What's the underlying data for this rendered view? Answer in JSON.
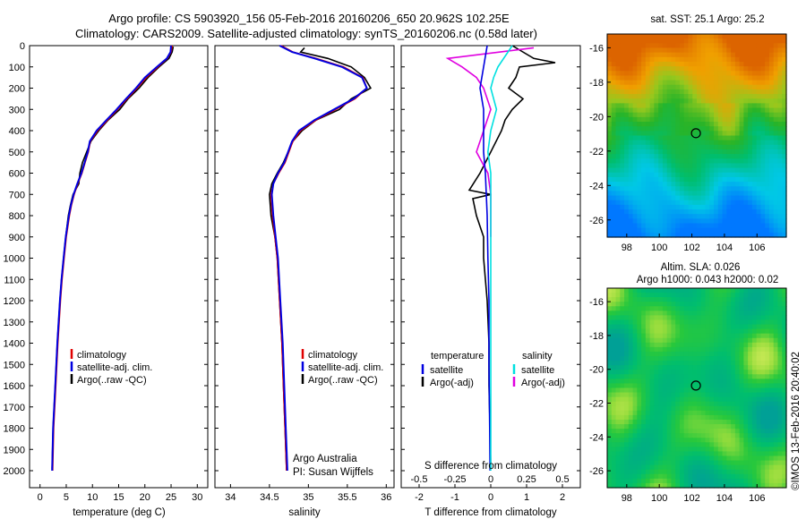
{
  "header": {
    "title_line1": "Argo profile: CS 5903920_156 05-Feb-2016 20160206_650 20.962S 102.25E",
    "title_line2": "Climatology: CARS2009. Satellite-adjusted climatology: synTS_20160206.nc (0.58d later)"
  },
  "side_label": "©IMOS 13-Feb-2016 20:40:02",
  "chart_data": [
    {
      "type": "line",
      "id": "temperature",
      "xlabel": "temperature (deg C)",
      "ylabel": "",
      "xlim": [
        -2,
        32
      ],
      "ylim": [
        2080,
        0
      ],
      "x_ticks": [
        0,
        5,
        10,
        15,
        20,
        25,
        30
      ],
      "y_ticks": [
        0,
        100,
        200,
        300,
        400,
        500,
        600,
        700,
        800,
        900,
        1000,
        1100,
        1200,
        1300,
        1400,
        1500,
        1600,
        1700,
        1800,
        1900,
        2000
      ],
      "legend": [
        "climatology",
        "satellite-adj. clim.",
        "Argo(..raw -QC)"
      ],
      "legend_placement": "lower-left",
      "colors": [
        "#e00000",
        "#0000e0",
        "#000000"
      ],
      "series": [
        {
          "name": "climatology",
          "depth": [
            0,
            30,
            60,
            100,
            150,
            200,
            250,
            300,
            350,
            400,
            450,
            500,
            550,
            600,
            650,
            700,
            750,
            800,
            900,
            1000,
            1100,
            1200,
            1400,
            1600,
            1800,
            2000
          ],
          "values": [
            25.2,
            25.0,
            24.3,
            22.5,
            20.3,
            18.5,
            16.6,
            14.8,
            12.9,
            11.0,
            9.6,
            9.2,
            8.6,
            8.0,
            7.2,
            6.5,
            6.0,
            5.6,
            5.0,
            4.6,
            4.2,
            3.9,
            3.4,
            3.0,
            2.6,
            2.4
          ]
        },
        {
          "name": "satellite-adj. clim.",
          "depth": [
            0,
            30,
            60,
            100,
            150,
            200,
            250,
            300,
            350,
            400,
            450,
            500,
            550,
            600,
            650,
            700,
            750,
            800,
            900,
            1000,
            1100,
            1200,
            1400,
            1600,
            1800,
            2000
          ],
          "values": [
            25.0,
            24.9,
            24.2,
            22.3,
            20.0,
            18.3,
            16.4,
            14.6,
            12.7,
            10.8,
            9.5,
            9.1,
            8.5,
            7.9,
            7.1,
            6.4,
            5.9,
            5.5,
            4.9,
            4.5,
            4.1,
            3.8,
            3.3,
            2.9,
            2.5,
            2.3
          ]
        },
        {
          "name": "Argo(..raw -QC)",
          "depth": [
            5,
            30,
            60,
            100,
            150,
            200,
            250,
            300,
            350,
            400,
            450,
            500,
            550,
            600,
            650,
            700,
            750,
            800,
            900,
            1000,
            1100,
            1200,
            1400,
            1600,
            1800,
            1990
          ],
          "values": [
            25.4,
            25.2,
            24.6,
            22.7,
            20.6,
            18.9,
            16.8,
            15.2,
            13.0,
            11.2,
            9.7,
            8.9,
            8.1,
            7.6,
            7.4,
            6.3,
            5.8,
            5.4,
            4.9,
            4.5,
            4.1,
            3.8,
            3.3,
            2.9,
            2.5,
            2.3
          ]
        }
      ]
    },
    {
      "type": "line",
      "id": "salinity",
      "xlabel": "salinity",
      "ylabel": "",
      "xlim": [
        33.8,
        36.1
      ],
      "ylim": [
        2080,
        0
      ],
      "x_ticks": [
        34,
        34.5,
        35,
        35.5,
        36
      ],
      "legend": [
        "climatology",
        "satellite-adj. clim.",
        "Argo(..raw -QC)"
      ],
      "legend_placement": "lower-right",
      "annotation_lines": [
        "Argo Australia",
        "PI: Susan Wijffels"
      ],
      "colors": [
        "#e00000",
        "#0000e0",
        "#000000"
      ],
      "series": [
        {
          "name": "climatology",
          "depth": [
            0,
            30,
            60,
            100,
            150,
            200,
            250,
            300,
            350,
            400,
            450,
            500,
            550,
            600,
            650,
            700,
            800,
            900,
            1000,
            1200,
            1400,
            1600,
            1800,
            2000
          ],
          "values": [
            34.65,
            34.8,
            35.1,
            35.45,
            35.7,
            35.75,
            35.6,
            35.35,
            35.1,
            34.9,
            34.8,
            34.75,
            34.7,
            34.62,
            34.55,
            34.52,
            34.54,
            34.57,
            34.6,
            34.63,
            34.66,
            34.68,
            34.7,
            34.72
          ]
        },
        {
          "name": "satellite-adj. clim.",
          "depth": [
            0,
            30,
            60,
            100,
            150,
            200,
            250,
            300,
            350,
            400,
            450,
            500,
            550,
            600,
            650,
            700,
            800,
            900,
            1000,
            1200,
            1400,
            1600,
            1800,
            2000
          ],
          "values": [
            34.63,
            34.79,
            35.08,
            35.43,
            35.69,
            35.75,
            35.58,
            35.33,
            35.08,
            34.88,
            34.79,
            34.74,
            34.69,
            34.61,
            34.55,
            34.53,
            34.55,
            34.58,
            34.61,
            34.64,
            34.67,
            34.69,
            34.71,
            34.73
          ]
        },
        {
          "name": "Argo(..raw -QC)",
          "depth": [
            10,
            30,
            60,
            100,
            150,
            200,
            250,
            300,
            350,
            400,
            450,
            500,
            550,
            600,
            650,
            700,
            800,
            900,
            1000,
            1200,
            1400,
            1600,
            1800,
            2000
          ],
          "values": [
            34.95,
            34.9,
            35.25,
            35.55,
            35.72,
            35.8,
            35.55,
            35.4,
            35.1,
            34.92,
            34.8,
            34.74,
            34.68,
            34.6,
            34.53,
            34.5,
            34.52,
            34.57,
            34.6,
            34.63,
            34.66,
            34.68,
            34.7,
            34.72
          ]
        }
      ]
    },
    {
      "type": "line",
      "id": "differences",
      "xlabel": "T difference from climatology",
      "xlabel_top": "S difference from climatology",
      "xlim": [
        -2.5,
        2.5
      ],
      "ylim": [
        2080,
        0
      ],
      "x_ticks_T": [
        -2,
        -1,
        0,
        1,
        2
      ],
      "x_ticks_S": [
        -0.5,
        -0.25,
        0,
        0.25,
        0.5
      ],
      "legend_headers": [
        "temperature",
        "salinity"
      ],
      "legend": [
        "satellite",
        "Argo(-adj)",
        "satellite",
        "Argo(-adj)"
      ],
      "legend_placement": "lower-center",
      "colors": [
        "#0000e0",
        "#000000",
        "#00e0e0",
        "#e000e0"
      ],
      "series": [
        {
          "name": "temperature satellite",
          "depth": [
            0,
            100,
            200,
            300,
            400,
            500,
            600,
            800,
            1000,
            1200,
            1500,
            1800,
            2000
          ],
          "values": [
            -0.1,
            -0.2,
            -0.3,
            -0.2,
            -0.2,
            -0.2,
            -0.15,
            -0.1,
            -0.08,
            -0.05,
            -0.05,
            -0.03,
            -0.02
          ]
        },
        {
          "name": "temperature Argo(-adj)",
          "depth": [
            0,
            60,
            80,
            100,
            150,
            200,
            250,
            300,
            350,
            400,
            500,
            600,
            680,
            700,
            720,
            800,
            900,
            1000,
            1200,
            1400,
            1600,
            1800,
            1990
          ],
          "values": [
            0.6,
            1.2,
            1.8,
            0.8,
            0.7,
            0.5,
            0.9,
            0.6,
            0.4,
            0.3,
            0.0,
            -0.3,
            -0.6,
            0.0,
            -0.5,
            -0.4,
            -0.2,
            -0.2,
            -0.1,
            -0.05,
            -0.05,
            -0.02,
            0.0
          ]
        },
        {
          "name": "salinity satellite",
          "depth": [
            0,
            100,
            150,
            200,
            300,
            400,
            500,
            600,
            800,
            1000,
            1200,
            1500,
            2000
          ],
          "values": [
            0.15,
            0.05,
            0.02,
            0.0,
            0.04,
            0.0,
            -0.02,
            0.0,
            0.0,
            0.0,
            0.0,
            0.0,
            0.0
          ]
        },
        {
          "name": "salinity Argo(-adj)",
          "depth": [
            10,
            60,
            100,
            150,
            200,
            300,
            400,
            500,
            600,
            700,
            800,
            900
          ],
          "values": [
            0.3,
            -0.3,
            -0.2,
            -0.1,
            -0.05,
            0.0,
            -0.05,
            -0.1,
            -0.02,
            0.0,
            0.0,
            0.0
          ]
        }
      ]
    },
    {
      "type": "heatmap",
      "id": "sst_map",
      "title": "sat. SST: 25.1  Argo: 25.2",
      "xlim": [
        96.8,
        107.8
      ],
      "ylim": [
        -27,
        -15.2
      ],
      "x_ticks": [
        98,
        100,
        102,
        104,
        106
      ],
      "y_ticks": [
        -16,
        -18,
        -20,
        -22,
        -24,
        -26
      ],
      "marker": {
        "lon": 102.25,
        "lat": -20.962
      }
    },
    {
      "type": "heatmap",
      "id": "sla_map",
      "title_line1": "Altim. SLA: 0.026",
      "title_line2": "Argo h1000: 0.043 h2000: 0.02",
      "xlim": [
        96.8,
        107.8
      ],
      "ylim": [
        -27,
        -15.2
      ],
      "x_ticks": [
        98,
        100,
        102,
        104,
        106
      ],
      "y_ticks": [
        -16,
        -18,
        -20,
        -22,
        -24,
        -26
      ],
      "marker": {
        "lon": 102.25,
        "lat": -20.962
      }
    }
  ]
}
